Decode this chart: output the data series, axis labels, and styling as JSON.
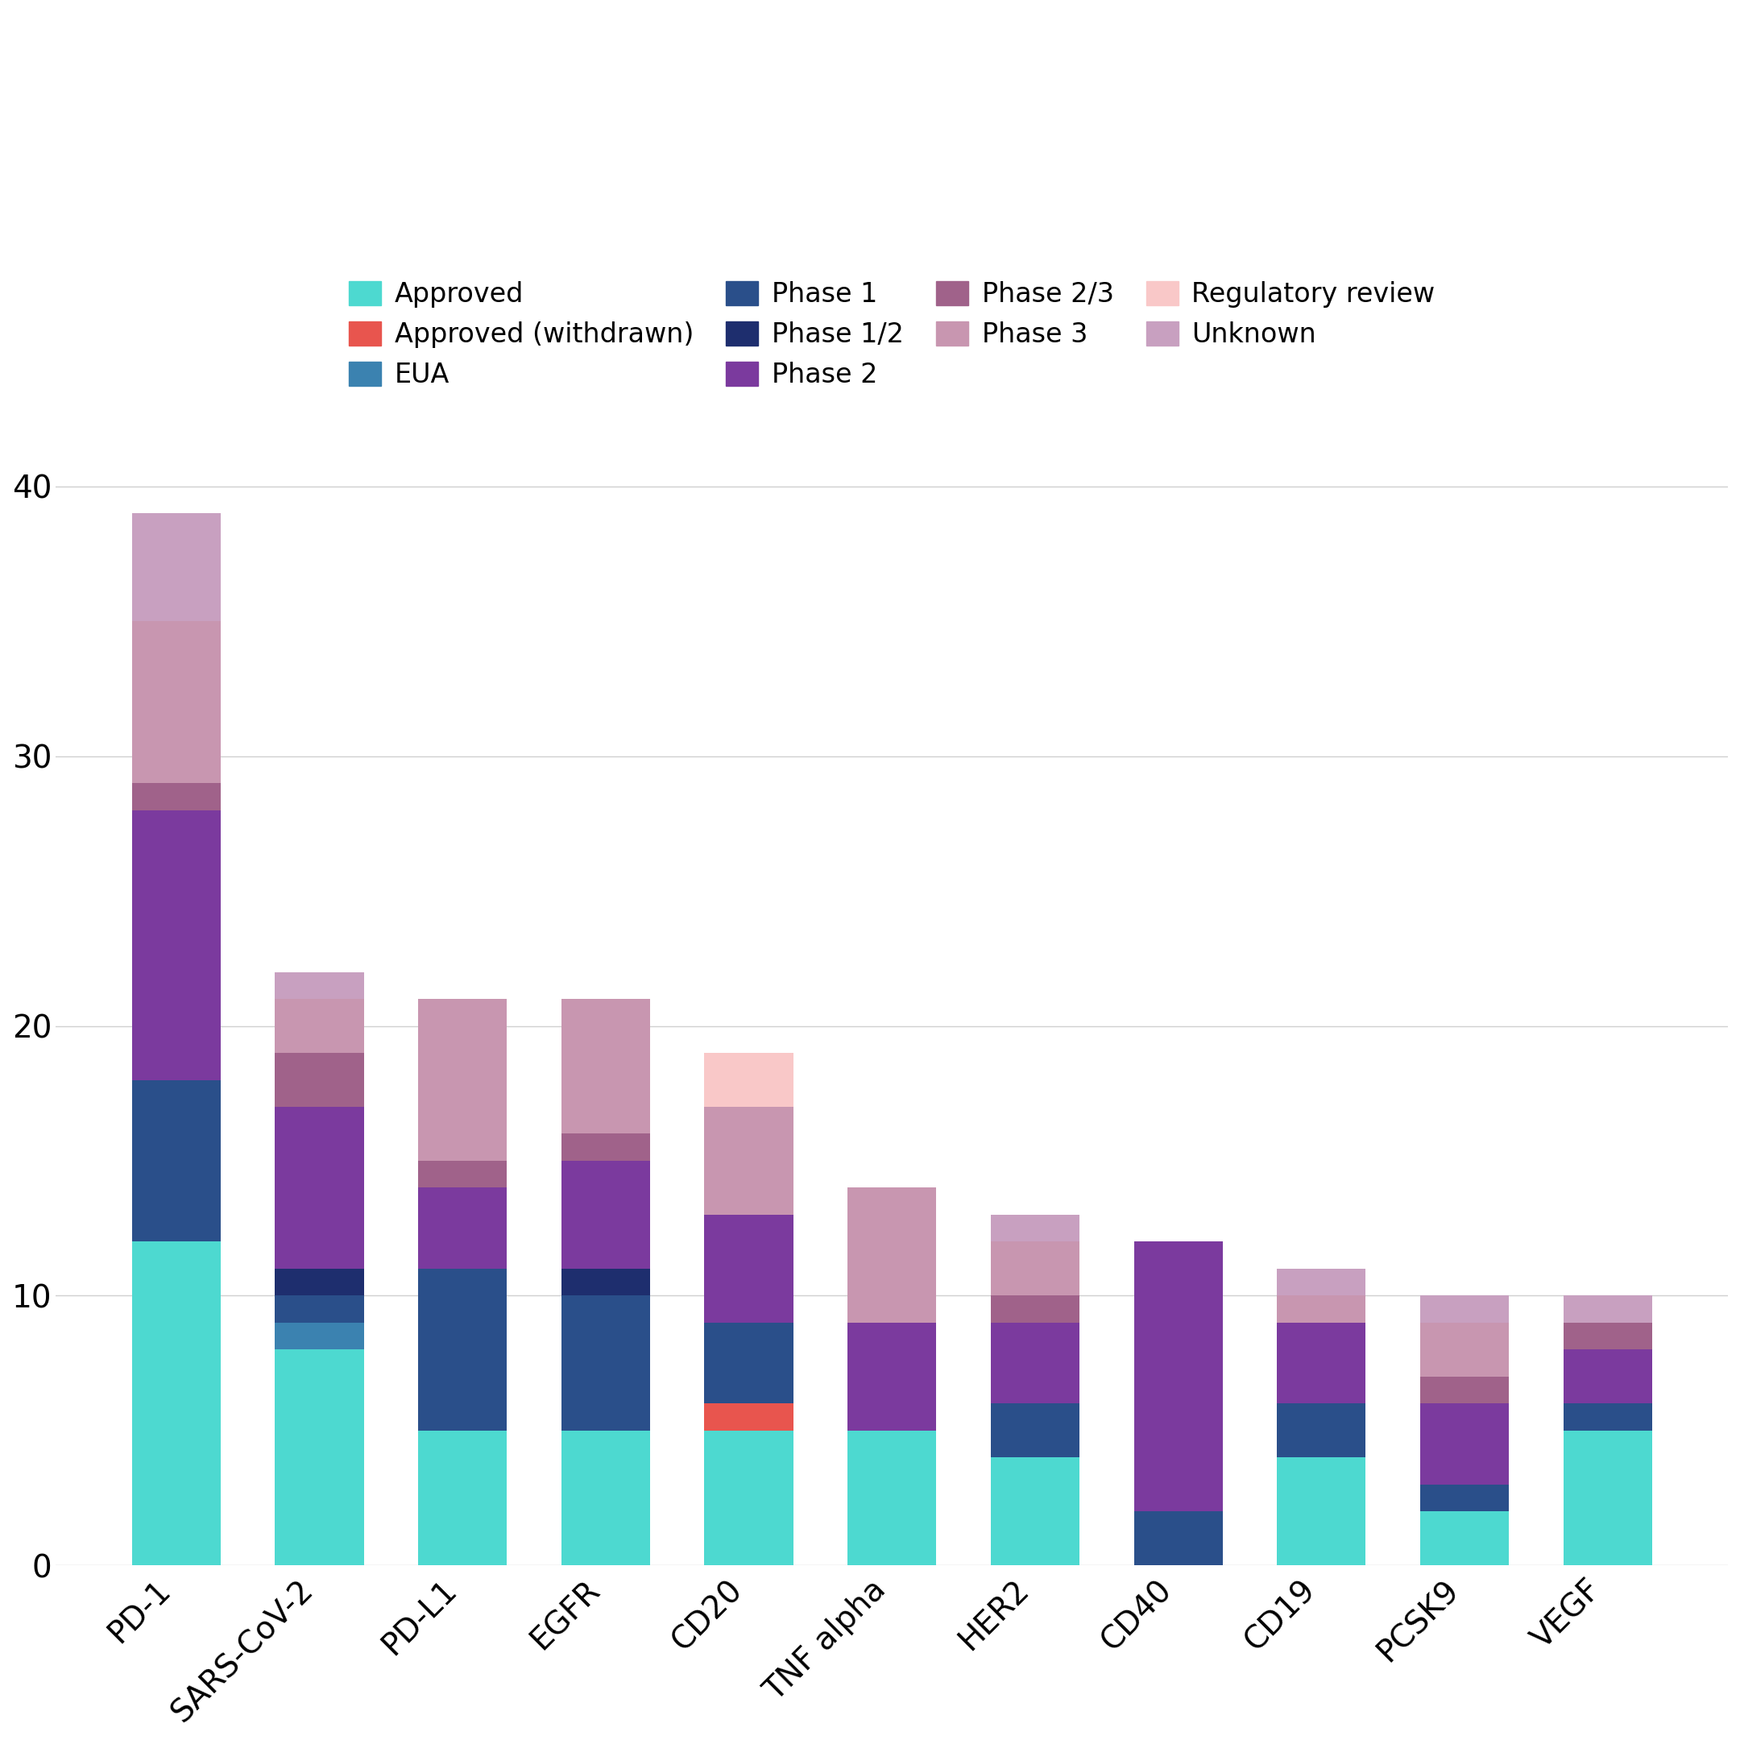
{
  "categories": [
    "PD-1",
    "SARS-CoV-2",
    "PD-L1",
    "EGFR",
    "CD20",
    "TNF alpha",
    "HER2",
    "CD40",
    "CD19",
    "PCSK9",
    "VEGF"
  ],
  "series": {
    "Approved": [
      12,
      8,
      5,
      5,
      5,
      5,
      4,
      0,
      4,
      2,
      5
    ],
    "Approved (withdrawn)": [
      0,
      0,
      0,
      0,
      1,
      0,
      0,
      0,
      0,
      0,
      0
    ],
    "EUA": [
      0,
      1,
      0,
      0,
      0,
      0,
      0,
      0,
      0,
      0,
      0
    ],
    "Phase 1": [
      6,
      1,
      6,
      5,
      3,
      0,
      2,
      2,
      2,
      1,
      1
    ],
    "Phase 1/2": [
      0,
      1,
      0,
      1,
      0,
      0,
      0,
      0,
      0,
      0,
      0
    ],
    "Phase 2": [
      10,
      6,
      3,
      4,
      4,
      4,
      3,
      10,
      3,
      3,
      2
    ],
    "Phase 2/3": [
      1,
      2,
      1,
      1,
      0,
      0,
      1,
      0,
      0,
      1,
      1
    ],
    "Phase 3": [
      6,
      2,
      6,
      5,
      4,
      5,
      2,
      0,
      1,
      2,
      0
    ],
    "Regulatory review": [
      0,
      0,
      0,
      0,
      2,
      0,
      0,
      0,
      0,
      0,
      0
    ],
    "Unknown": [
      4,
      1,
      0,
      0,
      0,
      0,
      1,
      0,
      1,
      1,
      1
    ]
  },
  "colors": {
    "Approved": "#4DD9D0",
    "Approved (withdrawn)": "#E8554E",
    "EUA": "#3B82B0",
    "Phase 1": "#2A4F8A",
    "Phase 1/2": "#1E2E6E",
    "Phase 2": "#7B3A9E",
    "Phase 2/3": "#A0628A",
    "Phase 3": "#C896B0",
    "Regulatory review": "#F9C8C8",
    "Unknown": "#C8A0C0"
  },
  "ylim": [
    0,
    42
  ],
  "yticks": [
    0,
    10,
    20,
    30,
    40
  ],
  "bar_width": 0.62,
  "background_color": "#ffffff",
  "legend_order": [
    "Approved",
    "Approved (withdrawn)",
    "EUA",
    "Phase 1",
    "Phase 1/2",
    "Phase 2",
    "Phase 2/3",
    "Phase 3",
    "Regulatory review",
    "Unknown"
  ],
  "legend_ncol_rows": [
    [
      4,
      4,
      2
    ]
  ],
  "grid_color": "#d0d0d0",
  "tick_fontsize": 28,
  "legend_fontsize": 24
}
